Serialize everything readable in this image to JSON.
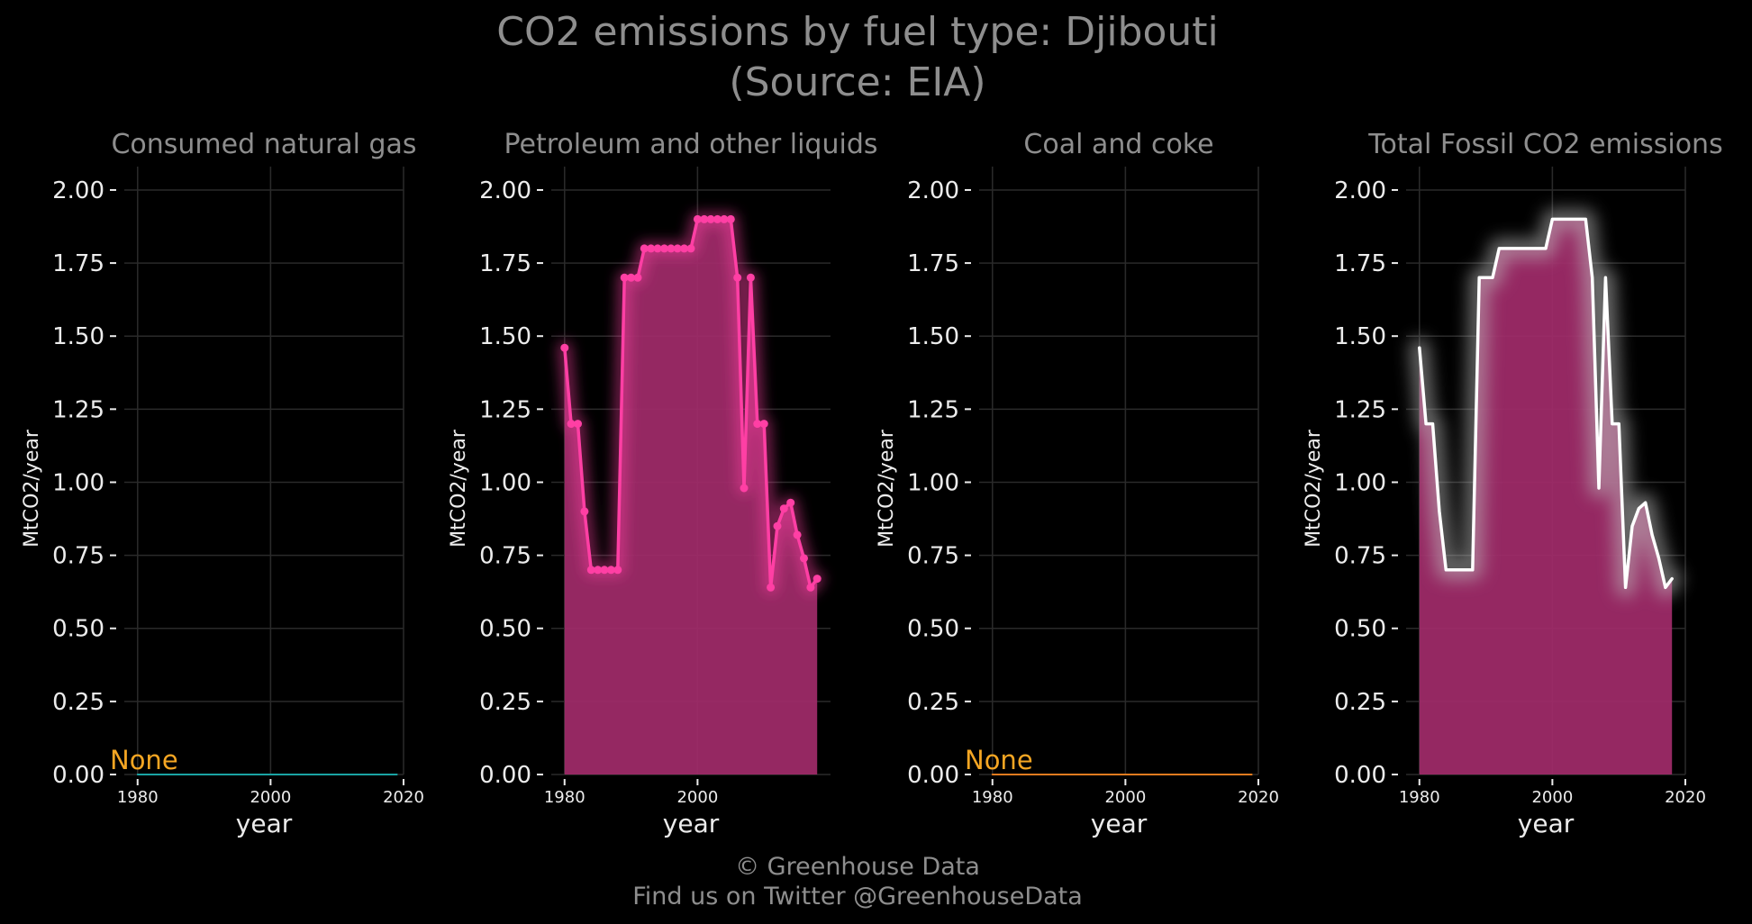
{
  "title_line1": "CO2 emissions by fuel type: Djibouti",
  "title_line2": "(Source: EIA)",
  "footer_line1": "© Greenhouse Data",
  "footer_line2": "Find us on Twitter @GreenhouseData",
  "colors": {
    "background": "#000000",
    "grid": "#2a2a2a",
    "text_muted": "#8e8e8e",
    "text_light": "#ececec",
    "none_label": "#f5a623",
    "gas_line": "#1aa3a3",
    "coal_line": "#e07b1f",
    "petroleum_line": "#ff3fa4",
    "petroleum_fill": "#a22b6a",
    "total_line": "#ffffff"
  },
  "chart_data": [
    {
      "type": "line",
      "title": "Consumed natural gas",
      "xlabel": "year",
      "ylabel": "MtCO2/year",
      "xlim": [
        1978,
        2020
      ],
      "ylim": [
        0,
        2.08
      ],
      "xticks": [
        1980,
        2000,
        2020
      ],
      "xtick_labels": [
        "1980",
        "2000",
        "2020"
      ],
      "yticks": [
        0,
        0.25,
        0.5,
        0.75,
        1.0,
        1.25,
        1.5,
        1.75,
        2.0
      ],
      "ytick_labels": [
        "0.00",
        "0.25",
        "0.50",
        "0.75",
        "1.00",
        "1.25",
        "1.50",
        "1.75",
        "2.00"
      ],
      "grid": true,
      "annotation": "None",
      "series": [
        {
          "x": [
            1980,
            2019
          ],
          "values": [
            0,
            0
          ],
          "color": "gas_line",
          "markers": false,
          "fill": false
        }
      ]
    },
    {
      "type": "area",
      "title": "Petroleum and other liquids",
      "xlabel": "year",
      "ylabel": "MtCO2/year",
      "xlim": [
        1978,
        2020
      ],
      "ylim": [
        0,
        2.08
      ],
      "xticks": [
        1980,
        2000
      ],
      "xtick_labels": [
        "1980",
        "2000"
      ],
      "yticks": [
        0,
        0.25,
        0.5,
        0.75,
        1.0,
        1.25,
        1.5,
        1.75,
        2.0
      ],
      "ytick_labels": [
        "0.00",
        "0.25",
        "0.50",
        "0.75",
        "1.00",
        "1.25",
        "1.50",
        "1.75",
        "2.00"
      ],
      "grid": true,
      "annotation": "",
      "series": [
        {
          "x": [
            1980,
            1981,
            1982,
            1983,
            1984,
            1985,
            1986,
            1987,
            1988,
            1989,
            1990,
            1991,
            1992,
            1993,
            1994,
            1995,
            1996,
            1997,
            1998,
            1999,
            2000,
            2001,
            2002,
            2003,
            2004,
            2005,
            2006,
            2007,
            2008,
            2009,
            2010,
            2011,
            2012,
            2013,
            2014,
            2015,
            2016,
            2017,
            2018
          ],
          "values": [
            1.46,
            1.2,
            1.2,
            0.9,
            0.7,
            0.7,
            0.7,
            0.7,
            0.7,
            1.7,
            1.7,
            1.7,
            1.8,
            1.8,
            1.8,
            1.8,
            1.8,
            1.8,
            1.8,
            1.8,
            1.9,
            1.9,
            1.9,
            1.9,
            1.9,
            1.9,
            1.7,
            0.98,
            1.7,
            1.2,
            1.2,
            0.64,
            0.85,
            0.91,
            0.93,
            0.82,
            0.74,
            0.64,
            0.67
          ],
          "color": "petroleum_line",
          "markers": true,
          "fill": true
        }
      ]
    },
    {
      "type": "line",
      "title": "Coal and coke",
      "xlabel": "year",
      "ylabel": "MtCO2/year",
      "xlim": [
        1978,
        2020
      ],
      "ylim": [
        0,
        2.08
      ],
      "xticks": [
        1980,
        2000,
        2020
      ],
      "xtick_labels": [
        "1980",
        "2000",
        "2020"
      ],
      "yticks": [
        0,
        0.25,
        0.5,
        0.75,
        1.0,
        1.25,
        1.5,
        1.75,
        2.0
      ],
      "ytick_labels": [
        "0.00",
        "0.25",
        "0.50",
        "0.75",
        "1.00",
        "1.25",
        "1.50",
        "1.75",
        "2.00"
      ],
      "grid": true,
      "annotation": "None",
      "series": [
        {
          "x": [
            1980,
            2019
          ],
          "values": [
            0,
            0
          ],
          "color": "coal_line",
          "markers": false,
          "fill": false
        }
      ]
    },
    {
      "type": "area",
      "title": "Total Fossil CO2 emissions",
      "xlabel": "year",
      "ylabel": "MtCO2/year",
      "xlim": [
        1978,
        2020
      ],
      "ylim": [
        0,
        2.08
      ],
      "xticks": [
        1980,
        2000,
        2020
      ],
      "xtick_labels": [
        "1980",
        "2000",
        "2020"
      ],
      "yticks": [
        0,
        0.25,
        0.5,
        0.75,
        1.0,
        1.25,
        1.5,
        1.75,
        2.0
      ],
      "ytick_labels": [
        "0.00",
        "0.25",
        "0.50",
        "0.75",
        "1.00",
        "1.25",
        "1.50",
        "1.75",
        "2.00"
      ],
      "grid": true,
      "annotation": "",
      "series": [
        {
          "x": [
            1980,
            1981,
            1982,
            1983,
            1984,
            1985,
            1986,
            1987,
            1988,
            1989,
            1990,
            1991,
            1992,
            1993,
            1994,
            1995,
            1996,
            1997,
            1998,
            1999,
            2000,
            2001,
            2002,
            2003,
            2004,
            2005,
            2006,
            2007,
            2008,
            2009,
            2010,
            2011,
            2012,
            2013,
            2014,
            2015,
            2016,
            2017,
            2018
          ],
          "values": [
            1.46,
            1.2,
            1.2,
            0.9,
            0.7,
            0.7,
            0.7,
            0.7,
            0.7,
            1.7,
            1.7,
            1.7,
            1.8,
            1.8,
            1.8,
            1.8,
            1.8,
            1.8,
            1.8,
            1.8,
            1.9,
            1.9,
            1.9,
            1.9,
            1.9,
            1.9,
            1.7,
            0.98,
            1.7,
            1.2,
            1.2,
            0.64,
            0.85,
            0.91,
            0.93,
            0.82,
            0.74,
            0.64,
            0.67
          ],
          "color": "total_line",
          "fill_color": "petroleum_fill",
          "markers": false,
          "fill": true
        }
      ]
    }
  ]
}
